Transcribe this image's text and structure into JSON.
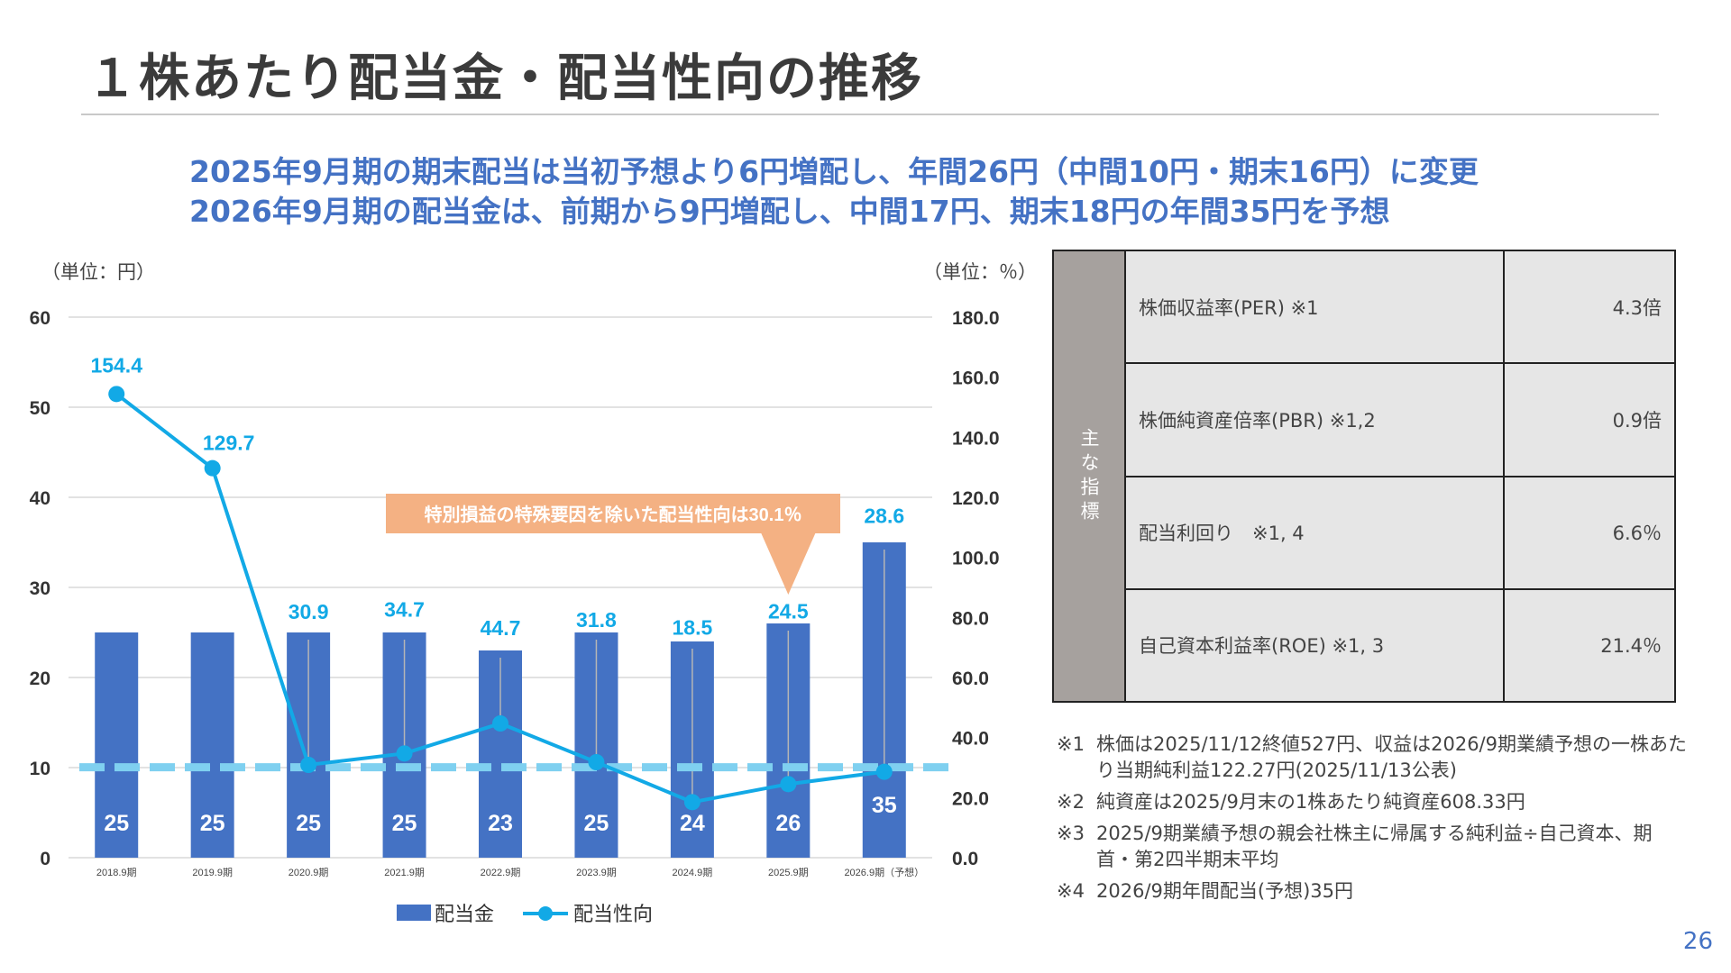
{
  "page": {
    "title": "１株あたり配当金・配当性向の推移",
    "subtitle1": "2025年9月期の期末配当は当初予想より6円増配し、年間26円（中間10円・期末16円）に変更",
    "subtitle2": "2026年9月期の配当金は、前期から9円増配し、中間17円、期末18円の年間35円を予想",
    "page_number": "26"
  },
  "chart_data": {
    "type": "bar",
    "categories": [
      "2018.9期",
      "2019.9期",
      "2020.9期",
      "2021.9期",
      "2022.9期",
      "2023.9期",
      "2024.9期",
      "2025.9期",
      "2026.9期（予想）"
    ],
    "series": [
      {
        "name": "配当金",
        "type": "bar",
        "axis": "left",
        "color": "#4472c4",
        "values": [
          25,
          25,
          25,
          25,
          23,
          25,
          24,
          26,
          35
        ],
        "labels": [
          "25",
          "25",
          "25",
          "25",
          "23",
          "25",
          "24",
          "26",
          "35"
        ]
      },
      {
        "name": "配当性向",
        "type": "line",
        "axis": "right",
        "color": "#12a9e6",
        "values": [
          154.4,
          129.7,
          30.9,
          34.7,
          44.7,
          31.8,
          18.5,
          24.5,
          28.6
        ],
        "labels": [
          "154.4",
          "129.7",
          "30.9",
          "34.7",
          "44.7",
          "31.8",
          "18.5",
          "24.5",
          "28.6"
        ]
      }
    ],
    "y_left": {
      "unit": "（単位：円）",
      "range": [
        0,
        60
      ],
      "ticks": [
        "0",
        "10",
        "20",
        "30",
        "40",
        "50",
        "60"
      ]
    },
    "y_right": {
      "unit": "（単位：％）",
      "range": [
        0,
        180
      ],
      "ticks": [
        "0.0",
        "20.0",
        "40.0",
        "60.0",
        "80.0",
        "100.0",
        "120.0",
        "140.0",
        "160.0",
        "180.0"
      ]
    },
    "reference_line": {
      "value_pct": 30.1,
      "color": "#7fd0f0",
      "style": "dashed"
    },
    "callout": {
      "text": "特別損益の特殊要因を除いた配当性向は30.1％",
      "color": "#f4b183",
      "points_to": "2025.9期"
    },
    "grid": "horizontal",
    "legend_position": "bottom-center"
  },
  "indicators": {
    "side_label": "主な指標",
    "rows": [
      {
        "name": "株価収益率(PER) ※1",
        "value": "4.3倍"
      },
      {
        "name": "株価純資産倍率(PBR) ※1,2",
        "value": "0.9倍"
      },
      {
        "name": "配当利回り　※1, 4",
        "value": "6.6％"
      },
      {
        "name": "自己資本利益率(ROE) ※1, 3",
        "value": "21.4％"
      }
    ]
  },
  "notes": [
    {
      "mark": "※1",
      "text": "株価は2025/11/12終値527円、収益は2026/9期業績予想の一株あたり当期純利益122.27円(2025/11/13公表)"
    },
    {
      "mark": "※2",
      "text": "純資産は2025/9月末の1株あたり純資産608.33円"
    },
    {
      "mark": "※3",
      "text": "2025/9期業績予想の親会社株主に帰属する純利益÷自己資本、期首・第2四半期末平均"
    },
    {
      "mark": "※4",
      "text": "2026/9期年間配当(予想)35円"
    }
  ]
}
